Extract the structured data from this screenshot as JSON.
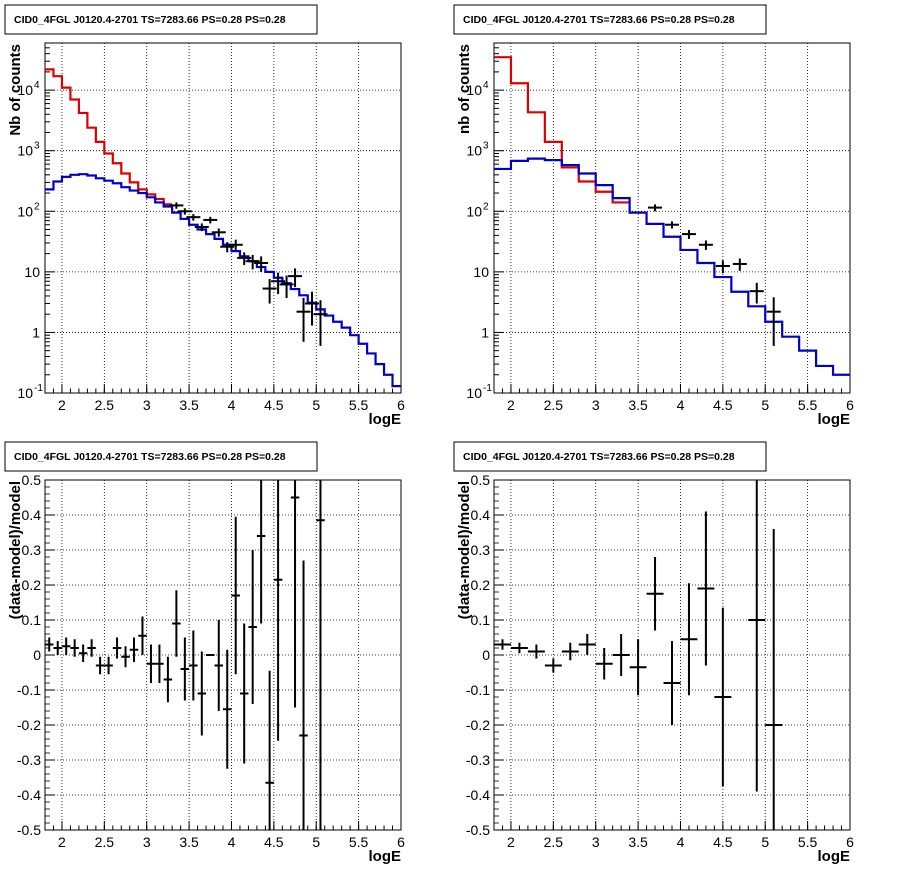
{
  "chart_data": [
    {
      "id": "counts-fine",
      "type": "line",
      "title": "CID0_4FGL J0120.4-2701 TS=7283.66 PS=0.28 PS=0.28",
      "xlabel": "logE",
      "ylabel": "Nb of counts",
      "xlim": [
        1.8,
        6.0
      ],
      "ylim": [
        0.1,
        60000
      ],
      "yscale": "log",
      "grid": true,
      "xticks": [
        "2",
        "2.5",
        "3",
        "3.5",
        "4",
        "4.5",
        "5",
        "5.5",
        "6"
      ],
      "yticks": [
        "10^-1",
        "1",
        "10",
        "10^2",
        "10^3",
        "10^4"
      ],
      "bin_edges": [
        1.8,
        1.9,
        2.0,
        2.1,
        2.2,
        2.3,
        2.4,
        2.5,
        2.6,
        2.7,
        2.8,
        2.9,
        3.0,
        3.1,
        3.2,
        3.3,
        3.4,
        3.5,
        3.6,
        3.7,
        3.8,
        3.9,
        4.0,
        4.1,
        4.2,
        4.3,
        4.4,
        4.5,
        4.6,
        4.7,
        4.8,
        4.9,
        5.0,
        5.1,
        5.2,
        5.3,
        5.4,
        5.5,
        5.6,
        5.7,
        5.8,
        5.9,
        6.0
      ],
      "series": [
        {
          "color": "#dd0000",
          "values": [
            22000,
            17000,
            11000,
            7000,
            4200,
            2400,
            1400,
            900,
            620,
            420,
            300,
            230,
            190,
            160,
            130,
            null,
            null,
            null,
            null,
            null,
            null,
            null,
            null,
            null,
            null,
            null,
            null,
            null,
            null,
            null,
            null,
            null,
            null,
            null,
            null,
            null,
            null,
            null,
            null,
            null,
            null,
            null
          ]
        },
        {
          "color": "#0000cc",
          "values": [
            230,
            310,
            370,
            400,
            410,
            390,
            350,
            320,
            290,
            250,
            220,
            200,
            170,
            140,
            120,
            95,
            75,
            60,
            50,
            42,
            35,
            28,
            22,
            18,
            15,
            12,
            10,
            8,
            6.5,
            5.2,
            4.1,
            3.1,
            2.4,
            1.9,
            1.5,
            1.2,
            0.9,
            0.65,
            0.45,
            0.3,
            0.2,
            0.13
          ]
        }
      ],
      "points": [
        {
          "x": 3.35,
          "y": 125,
          "ylo": 110,
          "yhi": 140
        },
        {
          "x": 3.45,
          "y": 100,
          "ylo": 88,
          "yhi": 112
        },
        {
          "x": 3.55,
          "y": 80,
          "ylo": 70,
          "yhi": 90
        },
        {
          "x": 3.65,
          "y": 55,
          "ylo": 47,
          "yhi": 63
        },
        {
          "x": 3.75,
          "y": 72,
          "ylo": 63,
          "yhi": 81
        },
        {
          "x": 3.85,
          "y": 45,
          "ylo": 38,
          "yhi": 52
        },
        {
          "x": 3.95,
          "y": 26,
          "ylo": 21,
          "yhi": 31
        },
        {
          "x": 4.05,
          "y": 28,
          "ylo": 22,
          "yhi": 34
        },
        {
          "x": 4.15,
          "y": 17,
          "ylo": 13,
          "yhi": 21
        },
        {
          "x": 4.25,
          "y": 15,
          "ylo": 11,
          "yhi": 19
        },
        {
          "x": 4.35,
          "y": 14,
          "ylo": 10,
          "yhi": 18
        },
        {
          "x": 4.45,
          "y": 5.3,
          "ylo": 3.0,
          "yhi": 7.6
        },
        {
          "x": 4.55,
          "y": 7.0,
          "ylo": 4.3,
          "yhi": 9.7
        },
        {
          "x": 4.65,
          "y": 6.2,
          "ylo": 3.7,
          "yhi": 8.7
        },
        {
          "x": 4.75,
          "y": 8.5,
          "ylo": 5.6,
          "yhi": 11.4
        },
        {
          "x": 4.85,
          "y": 2.2,
          "ylo": 0.7,
          "yhi": 3.7
        },
        {
          "x": 4.95,
          "y": 3.0,
          "ylo": 1.3,
          "yhi": 4.7
        },
        {
          "x": 5.05,
          "y": 2.0,
          "ylo": 0.6,
          "yhi": 3.4
        }
      ]
    },
    {
      "id": "counts-coarse",
      "type": "line",
      "title": "CID0_4FGL J0120.4-2701 TS=7283.66 PS=0.28 PS=0.28",
      "xlabel": "logE",
      "ylabel": "nb of counts",
      "xlim": [
        1.8,
        6.0
      ],
      "ylim": [
        0.1,
        60000
      ],
      "yscale": "log",
      "grid": true,
      "xticks": [
        "2",
        "2.5",
        "3",
        "3.5",
        "4",
        "4.5",
        "5",
        "5.5",
        "6"
      ],
      "yticks": [
        "10^-1",
        "1",
        "10",
        "10^2",
        "10^3",
        "10^4"
      ],
      "bin_edges": [
        1.8,
        2.0,
        2.2,
        2.4,
        2.6,
        2.8,
        3.0,
        3.2,
        3.4,
        3.6,
        3.8,
        4.0,
        4.2,
        4.4,
        4.6,
        4.8,
        5.0,
        5.2,
        5.4,
        5.6,
        5.8,
        6.0
      ],
      "series": [
        {
          "color": "#dd0000",
          "values": [
            35000,
            13000,
            4300,
            1400,
            530,
            310,
            210,
            140,
            null,
            null,
            null,
            null,
            null,
            null,
            null,
            null,
            null,
            null,
            null,
            null,
            null
          ]
        },
        {
          "color": "#0000cc",
          "values": [
            500,
            680,
            740,
            700,
            580,
            420,
            270,
            165,
            95,
            62,
            38,
            23,
            14,
            8.2,
            4.7,
            2.7,
            1.5,
            0.85,
            0.5,
            0.28,
            0.2
          ]
        }
      ],
      "points": [
        {
          "x": 3.7,
          "y": 115,
          "ylo": 100,
          "yhi": 130
        },
        {
          "x": 3.9,
          "y": 60,
          "ylo": 52,
          "yhi": 68
        },
        {
          "x": 4.1,
          "y": 42,
          "ylo": 35,
          "yhi": 49
        },
        {
          "x": 4.3,
          "y": 28,
          "ylo": 23,
          "yhi": 33
        },
        {
          "x": 4.5,
          "y": 12.5,
          "ylo": 9.5,
          "yhi": 15.5
        },
        {
          "x": 4.7,
          "y": 13.5,
          "ylo": 10.4,
          "yhi": 16.6
        },
        {
          "x": 4.9,
          "y": 4.8,
          "ylo": 3.0,
          "yhi": 6.6
        },
        {
          "x": 5.1,
          "y": 2.2,
          "ylo": 0.6,
          "yhi": 3.8
        }
      ]
    },
    {
      "id": "residuals-fine",
      "type": "scatter",
      "title": "CID0_4FGL J0120.4-2701 TS=7283.66 PS=0.28 PS=0.28",
      "xlabel": "logE",
      "ylabel": "(data-model)/model",
      "xlim": [
        1.8,
        6.0
      ],
      "ylim": [
        -0.5,
        0.5
      ],
      "grid": true,
      "xticks": [
        "2",
        "2.5",
        "3",
        "3.5",
        "4",
        "4.5",
        "5",
        "5.5",
        "6"
      ],
      "yticks": [
        "-0.5",
        "-0.4",
        "-0.3",
        "-0.2",
        "-0.1",
        "0",
        "0.1",
        "0.2",
        "0.3",
        "0.4",
        "0.5"
      ],
      "xhalfwidth": 0.05,
      "points": [
        {
          "x": 1.85,
          "y": 0.03,
          "err": 0.02
        },
        {
          "x": 1.95,
          "y": 0.02,
          "err": 0.02
        },
        {
          "x": 2.05,
          "y": 0.025,
          "err": 0.025
        },
        {
          "x": 2.15,
          "y": 0.02,
          "err": 0.025
        },
        {
          "x": 2.25,
          "y": 0.005,
          "err": 0.025
        },
        {
          "x": 2.35,
          "y": 0.02,
          "err": 0.025
        },
        {
          "x": 2.45,
          "y": -0.03,
          "err": 0.025
        },
        {
          "x": 2.55,
          "y": -0.03,
          "err": 0.025
        },
        {
          "x": 2.65,
          "y": 0.02,
          "err": 0.03
        },
        {
          "x": 2.75,
          "y": -0.005,
          "err": 0.03
        },
        {
          "x": 2.85,
          "y": 0.015,
          "err": 0.035
        },
        {
          "x": 2.95,
          "y": 0.055,
          "err": 0.055
        },
        {
          "x": 3.05,
          "y": -0.025,
          "err": 0.055
        },
        {
          "x": 3.15,
          "y": -0.025,
          "err": 0.055
        },
        {
          "x": 3.25,
          "y": -0.07,
          "err": 0.065
        },
        {
          "x": 3.35,
          "y": 0.09,
          "err": 0.095
        },
        {
          "x": 3.45,
          "y": -0.04,
          "err": 0.09
        },
        {
          "x": 3.55,
          "y": -0.03,
          "err": 0.1
        },
        {
          "x": 3.65,
          "y": -0.11,
          "err": 0.12
        },
        {
          "x": 3.75,
          "y": 0.0,
          "err": 0.0
        },
        {
          "x": 3.85,
          "y": -0.03,
          "err": 0.13
        },
        {
          "x": 3.95,
          "y": -0.155,
          "err": 0.17
        },
        {
          "x": 4.05,
          "y": 0.17,
          "err": 0.225
        },
        {
          "x": 4.15,
          "y": -0.11,
          "err": 0.2
        },
        {
          "x": 4.25,
          "y": 0.08,
          "err": 0.22
        },
        {
          "x": 4.35,
          "y": 0.34,
          "err": 0.25
        },
        {
          "x": 4.45,
          "y": -0.365,
          "err": 0.32
        },
        {
          "x": 4.55,
          "y": 0.215,
          "err": 0.46
        },
        {
          "x": 4.75,
          "y": 0.45,
          "err": 0.6
        },
        {
          "x": 4.85,
          "y": -0.23,
          "err": 0.5
        },
        {
          "x": 5.05,
          "y": 0.385,
          "err": 0.9
        }
      ]
    },
    {
      "id": "residuals-coarse",
      "type": "scatter",
      "title": "CID0_4FGL J0120.4-2701 TS=7283.66 PS=0.28 PS=0.28",
      "xlabel": "logE",
      "ylabel": "(data-model)/model",
      "xlim": [
        1.8,
        6.0
      ],
      "ylim": [
        -0.5,
        0.5
      ],
      "grid": true,
      "xticks": [
        "2",
        "2.5",
        "3",
        "3.5",
        "4",
        "4.5",
        "5",
        "5.5",
        "6"
      ],
      "yticks": [
        "-0.5",
        "-0.4",
        "-0.3",
        "-0.2",
        "-0.1",
        "0",
        "0.1",
        "0.2",
        "0.3",
        "0.4",
        "0.5"
      ],
      "xhalfwidth": 0.1,
      "points": [
        {
          "x": 1.9,
          "y": 0.03,
          "err": 0.015
        },
        {
          "x": 2.1,
          "y": 0.02,
          "err": 0.015
        },
        {
          "x": 2.3,
          "y": 0.01,
          "err": 0.02
        },
        {
          "x": 2.5,
          "y": -0.03,
          "err": 0.02
        },
        {
          "x": 2.7,
          "y": 0.01,
          "err": 0.025
        },
        {
          "x": 2.9,
          "y": 0.03,
          "err": 0.03
        },
        {
          "x": 3.1,
          "y": -0.025,
          "err": 0.045
        },
        {
          "x": 3.3,
          "y": 0.0,
          "err": 0.06
        },
        {
          "x": 3.5,
          "y": -0.035,
          "err": 0.08
        },
        {
          "x": 3.7,
          "y": 0.175,
          "err": 0.105
        },
        {
          "x": 3.9,
          "y": -0.08,
          "err": 0.12
        },
        {
          "x": 4.1,
          "y": 0.045,
          "err": 0.16
        },
        {
          "x": 4.3,
          "y": 0.19,
          "err": 0.22
        },
        {
          "x": 4.5,
          "y": -0.12,
          "err": 0.255
        },
        {
          "x": 4.9,
          "y": 0.1,
          "err": 0.49
        },
        {
          "x": 5.1,
          "y": -0.2,
          "err": 0.56
        }
      ]
    }
  ]
}
